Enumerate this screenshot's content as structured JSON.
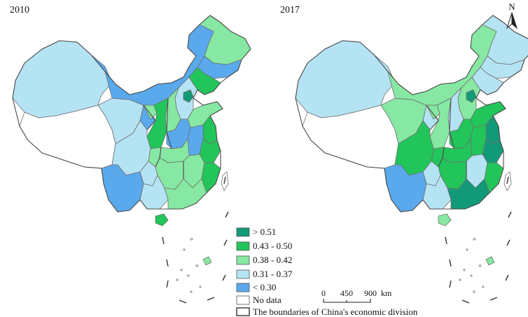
{
  "maps": [
    {
      "year": "2010"
    },
    {
      "year": "2017"
    }
  ],
  "colors": {
    "gt_0_51": "#129a78",
    "r_0_43_0_50": "#22c55a",
    "r_0_38_0_42": "#86e8a2",
    "r_0_31_0_37": "#b4e3f4",
    "lt_0_30": "#59a9ec",
    "no_data": "#ffffff"
  },
  "legend": {
    "items": [
      {
        "label": "> 0.51",
        "color": "#129a78"
      },
      {
        "label": "0.43 - 0.50",
        "color": "#22c55a"
      },
      {
        "label": "0.38 - 0.42",
        "color": "#86e8a2"
      },
      {
        "label": "0.31 - 0.37",
        "color": "#b4e3f4"
      },
      {
        "label": "< 0.30",
        "color": "#59a9ec"
      },
      {
        "label": "No data",
        "color": "#ffffff"
      }
    ],
    "boundary_label": "The boundaries of China's economic division"
  },
  "scale_bar": {
    "ticks": [
      "0",
      "450",
      "900"
    ],
    "unit": "km"
  },
  "north_arrow": {
    "label": "N"
  }
}
